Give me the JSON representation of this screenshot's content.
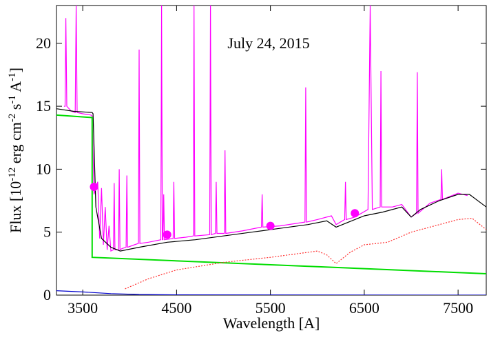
{
  "chart_data": {
    "type": "line",
    "annotation": "July 24, 2015",
    "xlabel": "Wavelength [A]",
    "ylabel_parts": [
      "Flux [10",
      "-12",
      " erg cm",
      "-2",
      " s",
      "-1",
      " A",
      "-1",
      "]"
    ],
    "xlim": [
      3220,
      7800
    ],
    "ylim": [
      0,
      23
    ],
    "xticks": [
      3500,
      4500,
      5500,
      6500,
      7500
    ],
    "yticks": [
      0,
      5,
      10,
      15,
      20
    ],
    "series": [
      {
        "color": "#ff00ff",
        "dash": false,
        "x": [
          3300,
          3312,
          3320,
          3330,
          3380,
          3420,
          3430,
          3440,
          3500,
          3590,
          3600,
          3620,
          3660,
          3680,
          3700,
          3720,
          3740,
          3760,
          3780,
          3800,
          3827,
          3835,
          3843,
          3881,
          3889,
          3897,
          3920,
          3962,
          3970,
          3978,
          4050,
          4093,
          4101,
          4109,
          4200,
          4332,
          4340,
          4348,
          4355,
          4363,
          4371,
          4463,
          4471,
          4479,
          4600,
          4678,
          4686,
          4694,
          4853,
          4861,
          4869,
          4914,
          4922,
          4930,
          5008,
          5016,
          5024,
          5200,
          5404,
          5412,
          5420,
          5600,
          5868,
          5876,
          5884,
          6000,
          6150,
          6200,
          6292,
          6300,
          6308,
          6400,
          6540,
          6563,
          6586,
          6670,
          6678,
          6686,
          6800,
          6900,
          7000,
          7057,
          7065,
          7073,
          7200,
          7317,
          7325,
          7333,
          7500,
          7600
        ],
        "values": [
          15,
          15,
          22,
          15,
          14.6,
          14.5,
          23,
          14.5,
          14.4,
          14.3,
          14.2,
          8,
          9,
          4.5,
          8.5,
          4,
          7,
          3.6,
          5.5,
          3.5,
          3.6,
          8.9,
          3.6,
          3.6,
          10,
          3.6,
          3.7,
          3.8,
          9.5,
          3.8,
          4,
          4.1,
          19.5,
          4.1,
          4.2,
          4.4,
          23,
          4.4,
          4.4,
          8,
          4.4,
          4.5,
          9,
          4.5,
          4.6,
          4.7,
          23,
          4.7,
          4.8,
          23,
          4.8,
          4.9,
          9,
          4.9,
          4.9,
          11.5,
          4.9,
          5.1,
          5.4,
          8,
          5.4,
          5.5,
          5.8,
          16.5,
          5.8,
          6,
          6.3,
          5.6,
          6,
          9,
          6,
          6.2,
          6.8,
          23,
          6.8,
          7,
          17.8,
          7,
          7,
          7.2,
          6.2,
          6.5,
          17.7,
          6.5,
          7.3,
          7.6,
          10,
          7.6,
          8.1,
          7.9
        ]
      },
      {
        "color": "#000000",
        "dash": false,
        "x": [
          3220,
          3400,
          3600,
          3610,
          3640,
          3700,
          3800,
          3900,
          4100,
          4400,
          4700,
          5000,
          5300,
          5600,
          5900,
          6100,
          6200,
          6300,
          6500,
          6700,
          6900,
          7000,
          7100,
          7300,
          7500,
          7620,
          7800
        ],
        "values": [
          14.8,
          14.6,
          14.5,
          14.4,
          7,
          4.5,
          3.8,
          3.5,
          3.8,
          4.2,
          4.4,
          4.7,
          5,
          5.3,
          5.6,
          5.9,
          5.4,
          5.7,
          6.3,
          6.6,
          7,
          6.2,
          6.8,
          7.5,
          8,
          8,
          7
        ]
      },
      {
        "color": "#00dd00",
        "dash": false,
        "x": [
          3220,
          3600,
          3600,
          7800
        ],
        "values": [
          14.3,
          14.1,
          3,
          1.7
        ]
      },
      {
        "color": "#ff3030",
        "dash": true,
        "x": [
          3950,
          4200,
          4500,
          5000,
          5500,
          6000,
          6100,
          6200,
          6350,
          6500,
          6750,
          7000,
          7250,
          7500,
          7650,
          7800
        ],
        "values": [
          0.5,
          1.3,
          2,
          2.6,
          3,
          3.5,
          3.2,
          2.5,
          3.4,
          4,
          4.2,
          5,
          5.5,
          6,
          6.1,
          5.2
        ]
      },
      {
        "color": "#0000cc",
        "dash": false,
        "x": [
          3220,
          3500,
          3800,
          4100,
          4500,
          7800
        ],
        "values": [
          0.35,
          0.25,
          0.12,
          0.05,
          0.02,
          0
        ]
      }
    ],
    "points": {
      "color": "#ff00ff",
      "x": [
        3620,
        4400,
        5500,
        6400
      ],
      "values": [
        8.6,
        4.8,
        5.5,
        6.5
      ]
    }
  }
}
